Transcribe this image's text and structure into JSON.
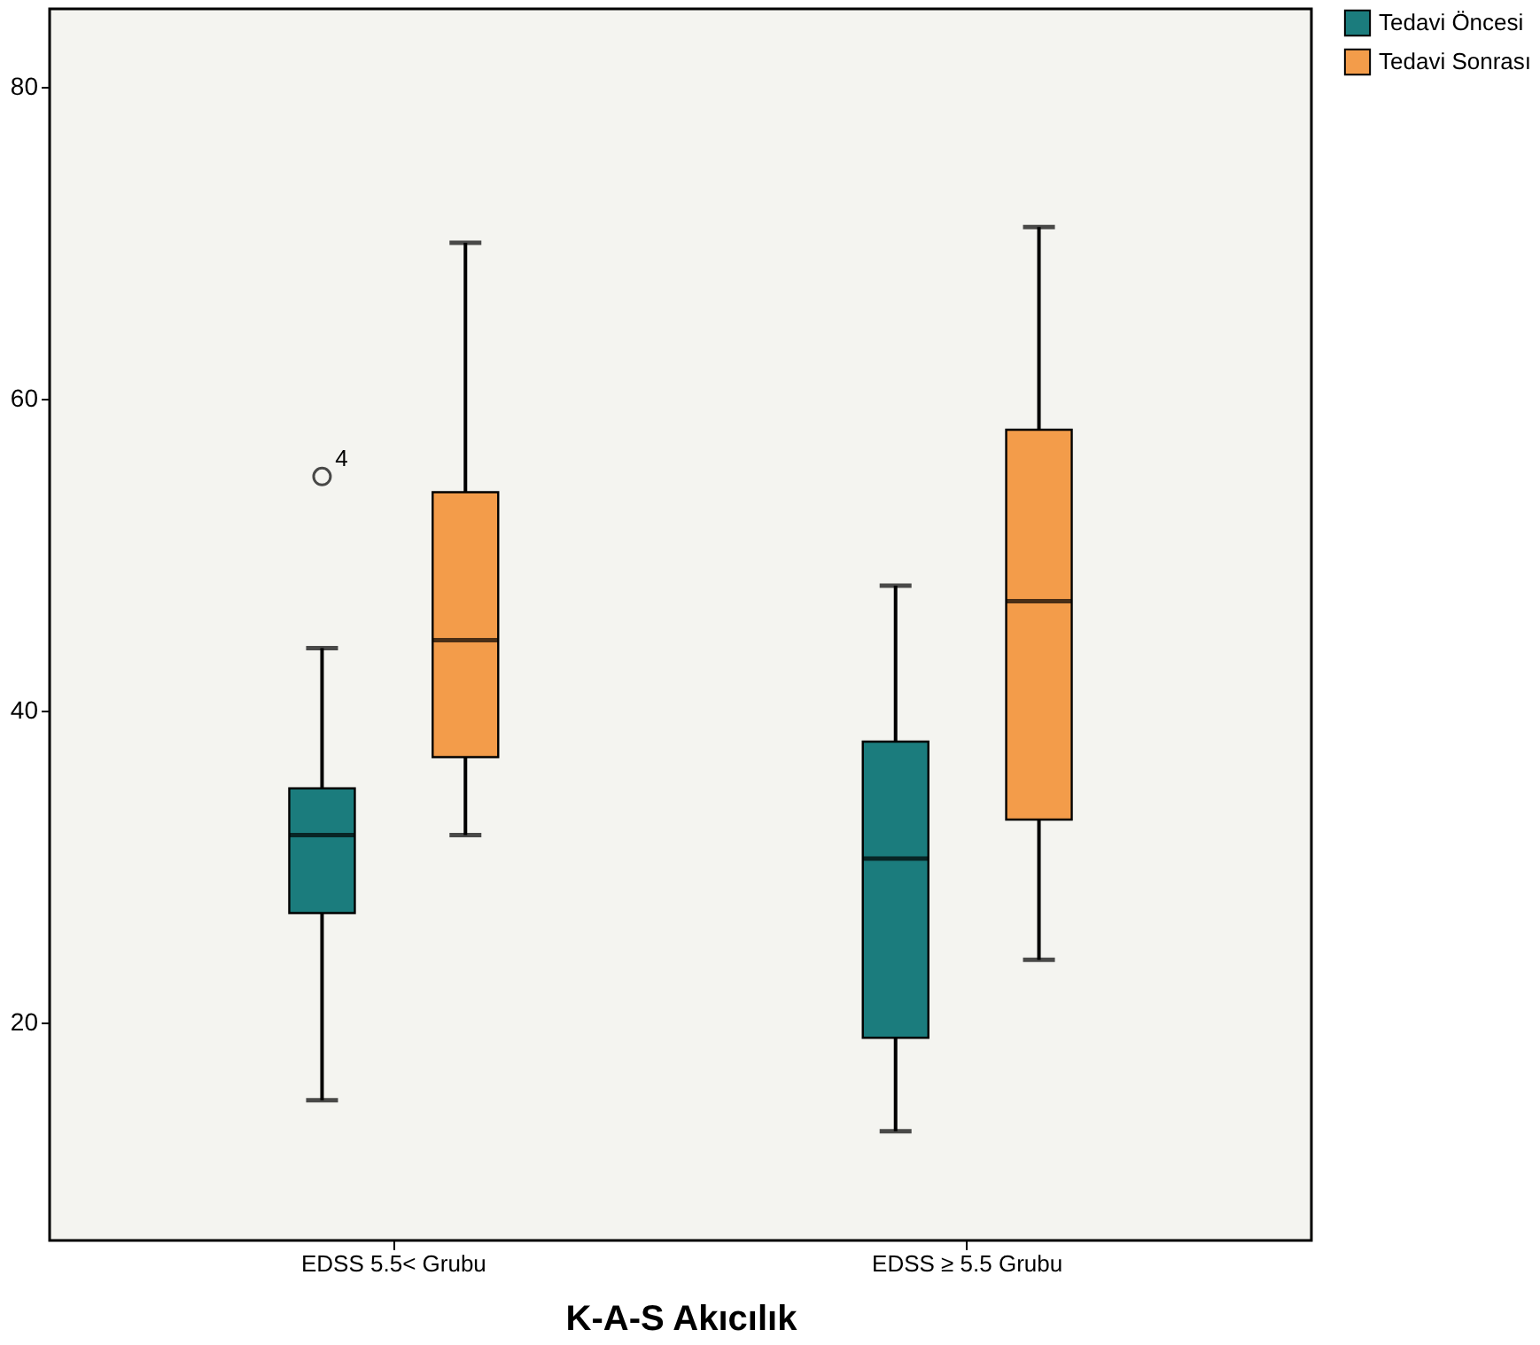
{
  "chart_data": {
    "type": "box",
    "xlabel": "K-A-S Akıcılık",
    "categories": [
      "EDSS 5.5< Grubu",
      "EDSS ≥ 5.5 Grubu"
    ],
    "series": [
      {
        "name": "Tedavi Öncesi",
        "color": "#1b7c7d",
        "boxes": [
          {
            "low": 15,
            "q1": 27,
            "median": 32,
            "q3": 35,
            "high": 44,
            "outliers": [
              55
            ]
          },
          {
            "low": 13,
            "q1": 19,
            "median": 30.5,
            "q3": 38,
            "high": 48
          }
        ]
      },
      {
        "name": "Tedavi Sonrası",
        "color": "#f39c4a",
        "boxes": [
          {
            "low": 32,
            "q1": 37,
            "median": 44.5,
            "q3": 54,
            "high": 70
          },
          {
            "low": 24,
            "q1": 33,
            "median": 47,
            "q3": 58,
            "high": 71
          }
        ]
      }
    ],
    "ylim": [
      6,
      85
    ],
    "yticks": [
      20,
      40,
      60,
      80
    ],
    "grid": false,
    "legend": "top right",
    "annotations": [
      "4"
    ]
  }
}
